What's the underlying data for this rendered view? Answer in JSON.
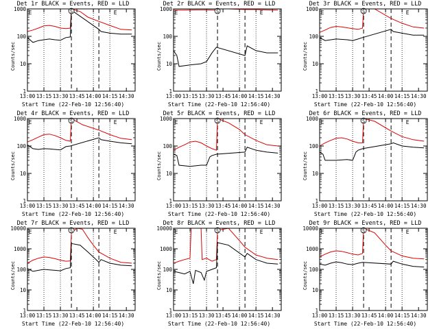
{
  "colors": {
    "events": "#000000",
    "lld": "#dd0000",
    "marker_line": "#000000"
  },
  "x_tick_labels": [
    "13:00",
    "13:15",
    "13:30",
    "13:45",
    "14:00",
    "14:15",
    "14:30"
  ],
  "y_tick_labels": [
    "1",
    "10",
    "100",
    "1000",
    "10000"
  ],
  "chart_data": [
    {
      "type": "line",
      "title": "Det 1r BLACK = Events, RED = LLD",
      "xlabel": "Start Time (22-Feb-10 12:56:40)",
      "ylabel": "Counts/sec",
      "xlim": [
        "13:00",
        "14:38"
      ],
      "ylim": [
        1,
        1000
      ],
      "yscale": "log",
      "y_ticks": [
        "1",
        "10",
        "100",
        "1000"
      ],
      "markers": {
        "S": "13:40",
        "E": "14:20"
      },
      "dotted_lines": [
        "13:15",
        "13:30",
        "14:00",
        "14:15"
      ],
      "dashed_lines": [
        "13:40",
        "14:05"
      ],
      "series": [
        {
          "name": "Events",
          "color": "#000000",
          "x": [
            "13:00",
            "13:05",
            "13:10",
            "13:15",
            "13:20",
            "13:25",
            "13:30",
            "13:35",
            "13:39",
            "13:40",
            "14:05",
            "14:07",
            "14:15",
            "14:25",
            "14:35"
          ],
          "values": [
            90,
            60,
            70,
            75,
            80,
            75,
            72,
            90,
            95,
            900,
            180,
            150,
            130,
            120,
            120
          ]
        },
        {
          "name": "LLD",
          "color": "#dd0000",
          "x": [
            "13:00",
            "13:05",
            "13:10",
            "13:15",
            "13:20",
            "13:25",
            "13:30",
            "13:35",
            "13:39",
            "13:40",
            "13:48",
            "13:55",
            "14:05",
            "14:15",
            "14:25",
            "14:35"
          ],
          "values": [
            150,
            170,
            200,
            240,
            250,
            230,
            200,
            190,
            200,
            1000,
            800,
            500,
            350,
            250,
            180,
            170
          ]
        }
      ]
    },
    {
      "type": "line",
      "title": "Det 2r BLACK = Events, RED = LLD",
      "xlabel": "Start Time (22-Feb-10 12:56:40)",
      "ylabel": "Counts/sec",
      "xlim": [
        "13:00",
        "14:38"
      ],
      "ylim": [
        1,
        1000
      ],
      "yscale": "log",
      "y_ticks": [
        "1",
        "10",
        "100",
        "1000"
      ],
      "markers": {
        "S": "13:40",
        "E": "14:20"
      },
      "dotted_lines": [
        "13:15",
        "13:30",
        "14:00",
        "14:15"
      ],
      "dashed_lines": [
        "13:40",
        "14:05"
      ],
      "series": [
        {
          "name": "Events",
          "color": "#000000",
          "x": [
            "13:00",
            "13:03",
            "13:05",
            "13:15",
            "13:25",
            "13:30",
            "13:35",
            "13:39",
            "14:05",
            "14:07",
            "14:15",
            "14:25",
            "14:35"
          ],
          "values": [
            30,
            20,
            8,
            9,
            10,
            12,
            25,
            40,
            20,
            45,
            30,
            25,
            25
          ]
        },
        {
          "name": "LLD",
          "color": "#dd0000",
          "x": [
            "13:00",
            "13:10",
            "13:20",
            "13:30",
            "13:39",
            "13:40",
            "13:50",
            "14:05",
            "14:15",
            "14:25",
            "14:35"
          ],
          "values": [
            900,
            900,
            920,
            920,
            900,
            1000,
            1000,
            950,
            950,
            920,
            900
          ]
        }
      ]
    },
    {
      "type": "line",
      "title": "Det 3r BLACK = Events, RED = LLD",
      "xlabel": "Start Time (22-Feb-10 12:56:40)",
      "ylabel": "Counts/sec",
      "xlim": [
        "13:00",
        "14:38"
      ],
      "ylim": [
        1,
        1000
      ],
      "yscale": "log",
      "y_ticks": [
        "1",
        "10",
        "100",
        "1000"
      ],
      "markers": {
        "S": "13:40",
        "E": "14:20"
      },
      "dotted_lines": [
        "13:15",
        "13:30",
        "14:00",
        "14:15"
      ],
      "dashed_lines": [
        "13:40",
        "14:05"
      ],
      "series": [
        {
          "name": "Events",
          "color": "#000000",
          "x": [
            "13:00",
            "13:05",
            "13:15",
            "13:25",
            "13:30",
            "13:35",
            "13:39",
            "14:05",
            "14:07",
            "14:15",
            "14:25",
            "14:35"
          ],
          "values": [
            90,
            70,
            80,
            75,
            70,
            80,
            90,
            180,
            150,
            130,
            110,
            110
          ]
        },
        {
          "name": "LLD",
          "color": "#dd0000",
          "x": [
            "13:00",
            "13:05",
            "13:10",
            "13:15",
            "13:20",
            "13:30",
            "13:35",
            "13:39",
            "13:40",
            "13:50",
            "14:05",
            "14:15",
            "14:25",
            "14:35"
          ],
          "values": [
            140,
            170,
            210,
            230,
            220,
            190,
            180,
            200,
            1000,
            1000,
            450,
            300,
            220,
            200
          ]
        }
      ]
    },
    {
      "type": "line",
      "title": "Det 4r BLACK = Events, RED = LLD",
      "xlabel": "Start Time (22-Feb-10 12:56:40)",
      "ylabel": "Counts/sec",
      "xlim": [
        "13:00",
        "14:38"
      ],
      "ylim": [
        1,
        1000
      ],
      "yscale": "log",
      "y_ticks": [
        "1",
        "10",
        "100",
        "1000"
      ],
      "markers": {
        "S": "13:40",
        "E": "14:20"
      },
      "dotted_lines": [
        "13:15",
        "13:30",
        "14:00",
        "14:15"
      ],
      "dashed_lines": [
        "13:40",
        "14:05"
      ],
      "series": [
        {
          "name": "Events",
          "color": "#000000",
          "x": [
            "13:00",
            "13:05",
            "13:10",
            "13:15",
            "13:20",
            "13:25",
            "13:30",
            "13:35",
            "13:39",
            "14:05",
            "14:07",
            "14:15",
            "14:25",
            "14:35"
          ],
          "values": [
            110,
            80,
            75,
            80,
            78,
            75,
            72,
            95,
            100,
            200,
            170,
            150,
            130,
            120
          ]
        },
        {
          "name": "LLD",
          "color": "#dd0000",
          "x": [
            "13:00",
            "13:05",
            "13:10",
            "13:15",
            "13:20",
            "13:25",
            "13:30",
            "13:35",
            "13:39",
            "13:40",
            "13:50",
            "14:05",
            "14:15",
            "14:25",
            "14:35"
          ],
          "values": [
            140,
            170,
            210,
            260,
            270,
            240,
            200,
            160,
            150,
            1000,
            600,
            380,
            260,
            190,
            170
          ]
        }
      ]
    },
    {
      "type": "line",
      "title": "Det 5r BLACK = Events, RED = LLD",
      "xlabel": "Start Time (22-Feb-10 12:56:40)",
      "ylabel": "Counts/sec",
      "xlim": [
        "13:00",
        "14:38"
      ],
      "ylim": [
        1,
        1000
      ],
      "yscale": "log",
      "y_ticks": [
        "1",
        "10",
        "100",
        "1000"
      ],
      "markers": {
        "S": "13:40",
        "E": "14:20"
      },
      "dotted_lines": [
        "13:15",
        "13:30",
        "14:00",
        "14:15"
      ],
      "dashed_lines": [
        "13:40",
        "14:05"
      ],
      "series": [
        {
          "name": "Events",
          "color": "#000000",
          "x": [
            "13:00",
            "13:03",
            "13:05",
            "13:15",
            "13:25",
            "13:30",
            "13:33",
            "13:35",
            "13:39",
            "14:05",
            "14:07",
            "14:15",
            "14:25",
            "14:35"
          ],
          "values": [
            50,
            45,
            20,
            18,
            20,
            20,
            40,
            45,
            50,
            60,
            90,
            70,
            60,
            55
          ]
        },
        {
          "name": "LLD",
          "color": "#dd0000",
          "x": [
            "13:00",
            "13:05",
            "13:10",
            "13:15",
            "13:20",
            "13:25",
            "13:30",
            "13:35",
            "13:39",
            "13:40",
            "13:50",
            "14:00",
            "14:05",
            "14:15",
            "14:25",
            "14:35"
          ],
          "values": [
            70,
            90,
            110,
            140,
            150,
            130,
            100,
            80,
            70,
            1000,
            700,
            400,
            260,
            160,
            110,
            100
          ]
        }
      ]
    },
    {
      "type": "line",
      "title": "Det 6r BLACK = Events, RED = LLD",
      "xlabel": "Start Time (22-Feb-10 12:56:40)",
      "ylabel": "Counts/sec",
      "xlim": [
        "13:00",
        "14:38"
      ],
      "ylim": [
        1,
        1000
      ],
      "yscale": "log",
      "y_ticks": [
        "1",
        "10",
        "100",
        "1000"
      ],
      "markers": {
        "S": "13:40",
        "E": "14:20"
      },
      "dotted_lines": [
        "13:15",
        "13:30",
        "14:00",
        "14:15"
      ],
      "dashed_lines": [
        "13:40",
        "14:05"
      ],
      "series": [
        {
          "name": "Events",
          "color": "#000000",
          "x": [
            "13:00",
            "13:03",
            "13:05",
            "13:15",
            "13:25",
            "13:30",
            "13:33",
            "13:35",
            "13:39",
            "14:05",
            "14:07",
            "14:15",
            "14:25",
            "14:35"
          ],
          "values": [
            60,
            50,
            30,
            30,
            32,
            30,
            60,
            70,
            80,
            120,
            130,
            100,
            90,
            85
          ]
        },
        {
          "name": "LLD",
          "color": "#dd0000",
          "x": [
            "13:00",
            "13:05",
            "13:10",
            "13:15",
            "13:20",
            "13:25",
            "13:30",
            "13:35",
            "13:39",
            "13:40",
            "13:50",
            "14:05",
            "14:15",
            "14:25",
            "14:35"
          ],
          "values": [
            100,
            130,
            160,
            190,
            200,
            180,
            150,
            130,
            130,
            1000,
            800,
            350,
            220,
            170,
            150
          ]
        }
      ]
    },
    {
      "type": "line",
      "title": "Det 7r BLACK = Events, RED = LLD",
      "xlabel": "Start Time (22-Feb-10 12:56:40)",
      "ylabel": "Counts/sec",
      "xlim": [
        "13:00",
        "14:38"
      ],
      "ylim": [
        1,
        10000
      ],
      "yscale": "log",
      "y_ticks": [
        "1",
        "10",
        "100",
        "1000",
        "10000"
      ],
      "markers": {
        "S": "13:40",
        "E": "14:20"
      },
      "dotted_lines": [
        "13:15",
        "13:30",
        "14:00",
        "14:15"
      ],
      "dashed_lines": [
        "13:40",
        "14:05"
      ],
      "series": [
        {
          "name": "Events",
          "color": "#000000",
          "x": [
            "13:00",
            "13:05",
            "13:10",
            "13:15",
            "13:20",
            "13:25",
            "13:30",
            "13:35",
            "13:39",
            "13:40",
            "13:48",
            "13:55",
            "14:00",
            "14:05",
            "14:07",
            "14:15",
            "14:25",
            "14:35"
          ],
          "values": [
            110,
            80,
            90,
            100,
            95,
            90,
            85,
            110,
            120,
            1800,
            1500,
            700,
            400,
            220,
            300,
            200,
            160,
            150
          ]
        },
        {
          "name": "LLD",
          "color": "#dd0000",
          "x": [
            "13:00",
            "13:05",
            "13:10",
            "13:15",
            "13:20",
            "13:25",
            "13:30",
            "13:35",
            "13:39",
            "13:40",
            "13:45",
            "13:50",
            "13:55",
            "14:00",
            "14:05",
            "14:15",
            "14:25",
            "14:35"
          ],
          "values": [
            200,
            280,
            350,
            400,
            380,
            330,
            280,
            250,
            260,
            6000,
            10000,
            9000,
            3500,
            1500,
            700,
            350,
            220,
            200
          ]
        }
      ]
    },
    {
      "type": "line",
      "title": "Det 8r BLACK = Events, RED = LLD",
      "xlabel": "Start Time (22-Feb-10 12:56:40)",
      "ylabel": "Counts/sec",
      "xlim": [
        "13:00",
        "14:38"
      ],
      "ylim": [
        1,
        10000
      ],
      "yscale": "log",
      "y_ticks": [
        "1",
        "10",
        "100",
        "1000",
        "10000"
      ],
      "markers": {
        "S": "13:40",
        "E": "14:20"
      },
      "dotted_lines": [
        "13:15",
        "13:30",
        "14:00",
        "14:15"
      ],
      "dashed_lines": [
        "13:40",
        "14:05"
      ],
      "series": [
        {
          "name": "Events",
          "color": "#000000",
          "x": [
            "13:00",
            "13:05",
            "13:10",
            "13:15",
            "13:18",
            "13:20",
            "13:25",
            "13:28",
            "13:30",
            "13:35",
            "13:39",
            "13:40",
            "13:50",
            "14:05",
            "14:07",
            "14:15",
            "14:25",
            "14:35"
          ],
          "values": [
            80,
            70,
            60,
            80,
            20,
            90,
            70,
            30,
            80,
            100,
            120,
            2000,
            1500,
            400,
            600,
            300,
            200,
            180
          ]
        },
        {
          "name": "LLD",
          "color": "#dd0000",
          "x": [
            "13:00",
            "13:05",
            "13:10",
            "13:15",
            "13:16",
            "13:25",
            "13:26",
            "13:30",
            "13:35",
            "13:39",
            "13:40",
            "13:50",
            "14:00",
            "14:05",
            "14:15",
            "14:25",
            "14:35"
          ],
          "values": [
            200,
            250,
            300,
            350,
            10000,
            10000,
            300,
            350,
            250,
            300,
            8000,
            10000,
            2500,
            1200,
            500,
            350,
            300
          ]
        }
      ]
    },
    {
      "type": "line",
      "title": "Det 9r BLACK = Events, RED = LLD",
      "xlabel": "Start Time (22-Feb-10 12:56:40)",
      "ylabel": "Counts/sec",
      "xlim": [
        "13:00",
        "14:38"
      ],
      "ylim": [
        1,
        10000
      ],
      "yscale": "log",
      "y_ticks": [
        "1",
        "10",
        "100",
        "1000",
        "10000"
      ],
      "markers": {
        "S": "13:40",
        "E": "14:20"
      },
      "dotted_lines": [
        "13:15",
        "13:30",
        "14:00",
        "14:15"
      ],
      "dashed_lines": [
        "13:40",
        "14:05"
      ],
      "series": [
        {
          "name": "Events",
          "color": "#000000",
          "x": [
            "13:00",
            "13:05",
            "13:10",
            "13:15",
            "13:20",
            "13:25",
            "13:30",
            "13:35",
            "13:39",
            "14:05",
            "14:07",
            "14:15",
            "14:25",
            "14:35"
          ],
          "values": [
            180,
            160,
            200,
            230,
            210,
            180,
            170,
            200,
            220,
            180,
            250,
            180,
            140,
            130
          ]
        },
        {
          "name": "LLD",
          "color": "#dd0000",
          "x": [
            "13:00",
            "13:05",
            "13:10",
            "13:15",
            "13:20",
            "13:25",
            "13:30",
            "13:35",
            "13:39",
            "13:40",
            "13:50",
            "14:00",
            "14:05",
            "14:15",
            "14:25",
            "14:35"
          ],
          "values": [
            400,
            550,
            700,
            800,
            750,
            650,
            550,
            500,
            600,
            10000,
            6000,
            1500,
            800,
            450,
            350,
            320
          ]
        }
      ]
    }
  ]
}
